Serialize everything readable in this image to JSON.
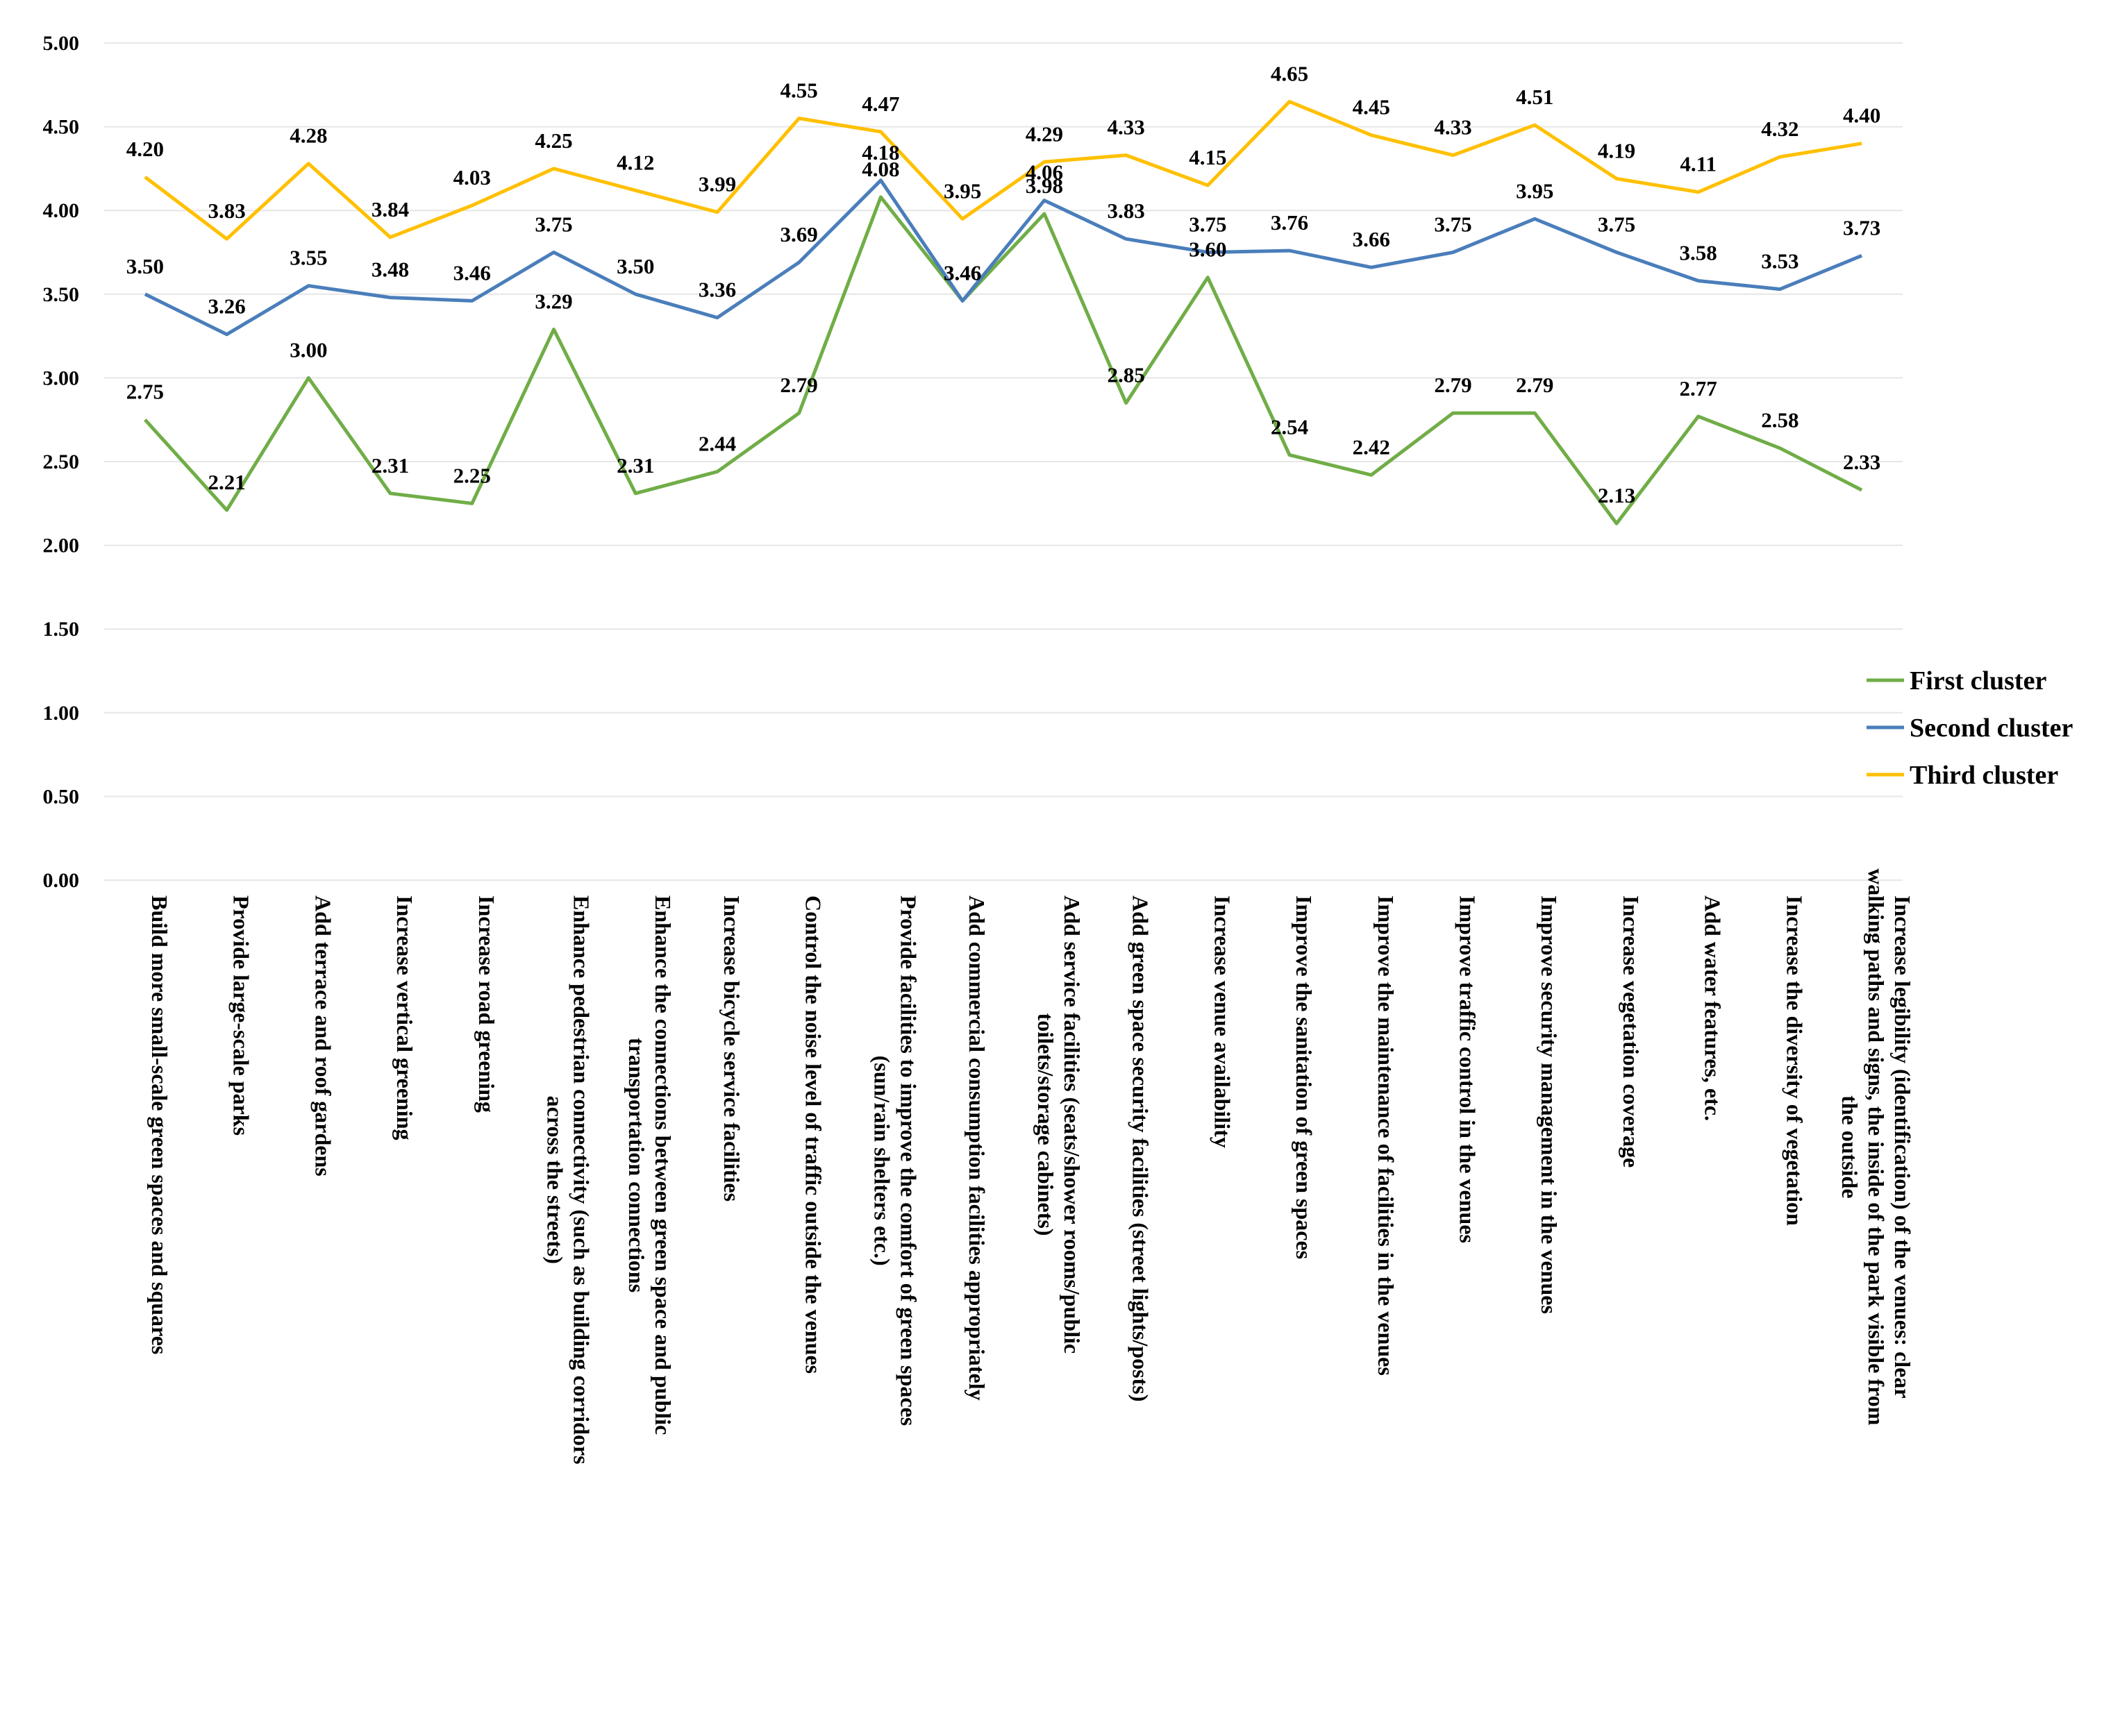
{
  "chart_data": {
    "type": "line",
    "title": "",
    "xlabel": "",
    "ylabel": "",
    "ylim": [
      0,
      5
    ],
    "y_ticks": [
      "0.00",
      "0.50",
      "1.00",
      "1.50",
      "2.00",
      "2.50",
      "3.00",
      "3.50",
      "4.00",
      "4.50",
      "5.00"
    ],
    "grid": true,
    "legend_position": "right",
    "categories": [
      [
        "Build more small-scale green spaces and squares"
      ],
      [
        "Provide large-scale parks"
      ],
      [
        "Add terrace and roof gardens"
      ],
      [
        "Increase vertical greening"
      ],
      [
        "Increase road greening"
      ],
      [
        "Enhance pedestrian connectivity (such as building corridors",
        "across the streets)"
      ],
      [
        "Enhance the connections between green space and public",
        "transportation connections"
      ],
      [
        "Increase bicycle service facilities"
      ],
      [
        "Control the noise level of traffic outside the venues"
      ],
      [
        "Provide facilities to improve the comfort of green spaces",
        "(sun/rain shelters etc.)"
      ],
      [
        "Add commercial consumption facilities appropriately"
      ],
      [
        "Add service facilities (seats/shower rooms/public",
        "toilets/storage cabinets)"
      ],
      [
        "Add green space security facilities (street lights/posts)"
      ],
      [
        "Increase venue availability"
      ],
      [
        "Improve the sanitation of green spaces"
      ],
      [
        "Improve the maintenance of facilities in the venues"
      ],
      [
        "Improve traffic control in the venues"
      ],
      [
        "Improve security management in the venues"
      ],
      [
        "Increase vegetation coverage"
      ],
      [
        "Add water features, etc."
      ],
      [
        "Increase the diversity of vegetation"
      ],
      [
        "Increase legibility (identification) of the venues: clear",
        "walking paths and signs, the inside of the park visible from",
        "the outside"
      ]
    ],
    "series": [
      {
        "name": "First cluster",
        "color": "#70ad47",
        "values": [
          2.75,
          2.21,
          3.0,
          2.31,
          2.25,
          3.29,
          2.31,
          2.44,
          2.79,
          4.08,
          3.46,
          3.98,
          2.85,
          3.6,
          2.54,
          2.42,
          2.79,
          2.79,
          2.13,
          2.77,
          2.58,
          2.33
        ],
        "labels": [
          "2.75",
          "2.21",
          "3.00",
          "2.31",
          "2.25",
          "3.29",
          "2.31",
          "2.44",
          "2.79",
          "4.08",
          "3.46",
          "3.98",
          "2.85",
          "3.60",
          "2.54",
          "2.42",
          "2.79",
          "2.79",
          "2.13",
          "2.77",
          "2.58",
          "2.33"
        ]
      },
      {
        "name": "Second cluster",
        "color": "#4a7ebb",
        "values": [
          3.5,
          3.26,
          3.55,
          3.48,
          3.46,
          3.75,
          3.5,
          3.36,
          3.69,
          4.18,
          3.46,
          4.06,
          3.83,
          3.75,
          3.76,
          3.66,
          3.75,
          3.95,
          3.75,
          3.58,
          3.53,
          3.73
        ],
        "labels": [
          "3.50",
          "3.26",
          "3.55",
          "3.48",
          "3.46",
          "3.75",
          "3.50",
          "3.36",
          "3.69",
          "4.18",
          "3.46",
          "4.06",
          "3.83",
          "3.75",
          "3.76",
          "3.66",
          "3.75",
          "3.95",
          "3.75",
          "3.58",
          "3.53",
          "3.73"
        ]
      },
      {
        "name": "Third cluster",
        "color": "#ffc000",
        "values": [
          4.2,
          3.83,
          4.28,
          3.84,
          4.03,
          4.25,
          4.12,
          3.99,
          4.55,
          4.47,
          3.95,
          4.29,
          4.33,
          4.15,
          4.65,
          4.45,
          4.33,
          4.51,
          4.19,
          4.11,
          4.32,
          4.4
        ],
        "labels": [
          "4.20",
          "3.83",
          "4.28",
          "3.84",
          "4.03",
          "4.25",
          "4.12",
          "3.99",
          "4.55",
          "4.47",
          "3.95",
          "4.29",
          "4.33",
          "4.15",
          "4.65",
          "4.45",
          "4.33",
          "4.51",
          "4.19",
          "4.11",
          "4.32",
          "4.40"
        ]
      }
    ]
  }
}
